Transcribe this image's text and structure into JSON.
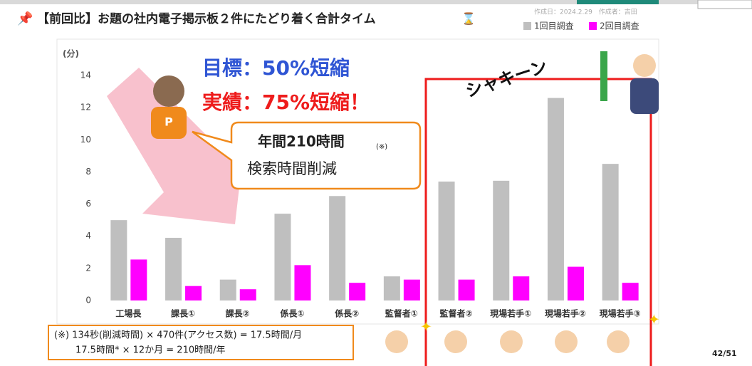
{
  "slide": {
    "title": "【前回比】お題の社内電子掲示板２件にたどり着く合計タイム",
    "meta": "作成日：2024.2.29　作成者：吉田",
    "target": "目標：50%短縮",
    "result": "実績：75%短縮！",
    "callout_main": "年間210時間",
    "callout_note": "(※)",
    "callout_sub": "検索時間削減",
    "sfx": "シャキーン",
    "footnote": [
      "(※) 134秒(削減時間) × 470件(アクセス数) = 17.5時間/月",
      "17.5時間* × 12か月 = 210時間/年"
    ],
    "page": "42/51"
  },
  "chart_data": {
    "type": "bar",
    "y_unit": "(分)",
    "categories": [
      "工場長",
      "課長①",
      "課長②",
      "係長①",
      "係長②",
      "監督者①",
      "監督者②",
      "現場若手①",
      "現場若手②",
      "現場若手③"
    ],
    "series": [
      {
        "name": "1回目調査",
        "color": "#bfbfbf",
        "values": [
          5.0,
          3.9,
          1.3,
          5.4,
          6.5,
          1.5,
          7.4,
          7.45,
          12.6,
          8.5
        ]
      },
      {
        "name": "2回目調査",
        "color": "#ff00ff",
        "values": [
          2.55,
          0.9,
          0.7,
          2.2,
          1.1,
          1.3,
          1.3,
          1.5,
          2.1,
          1.1
        ]
      }
    ],
    "ylim": [
      0,
      14
    ],
    "yticks": [
      0,
      2,
      4,
      6,
      8,
      10,
      12,
      14
    ],
    "grid": false
  }
}
